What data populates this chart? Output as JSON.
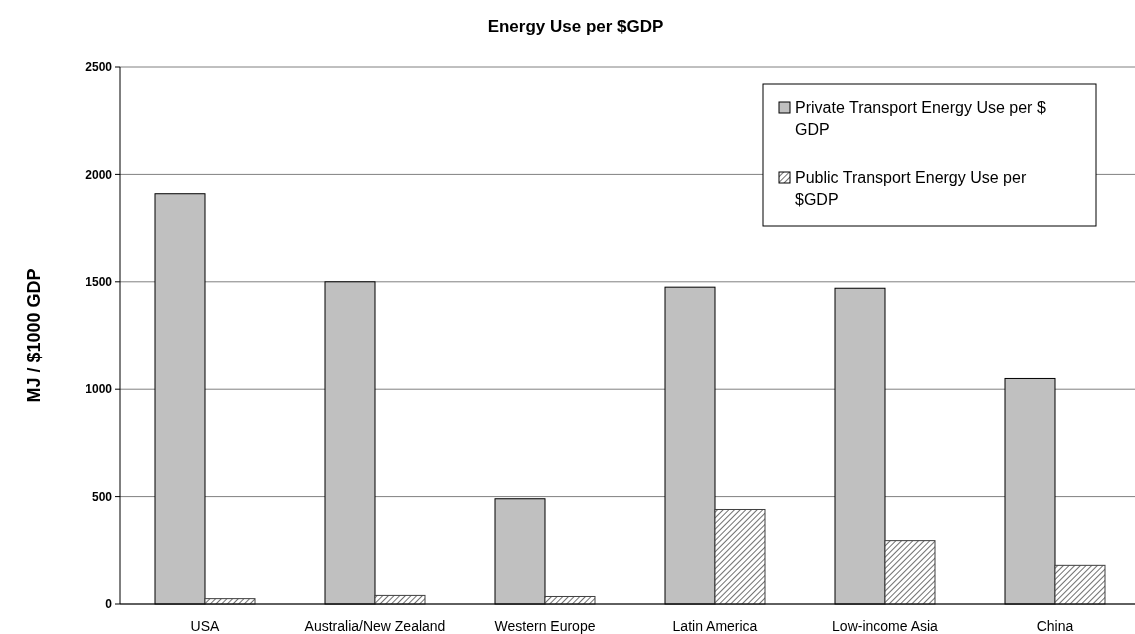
{
  "chart_data": {
    "type": "bar",
    "title": "Energy Use per $GDP",
    "ylabel": "MJ / $1000 GDP",
    "categories": [
      "USA",
      "Australia/New Zealand",
      "Western Europe",
      "Latin America",
      "Low-income Asia",
      "China"
    ],
    "series": [
      {
        "name": "Private Transport Energy Use per $ GDP",
        "color": "#c0c0c0",
        "values": [
          1910,
          1500,
          490,
          1475,
          1470,
          1050
        ]
      },
      {
        "name": "Public Transport Energy Use per $GDP",
        "color": "#404040",
        "values": [
          25,
          40,
          35,
          440,
          295,
          180
        ]
      }
    ],
    "ylim": [
      0,
      2500
    ],
    "yticks": [
      0,
      500,
      1000,
      1500,
      2000,
      2500
    ],
    "grid": "y",
    "legend": "top right"
  }
}
